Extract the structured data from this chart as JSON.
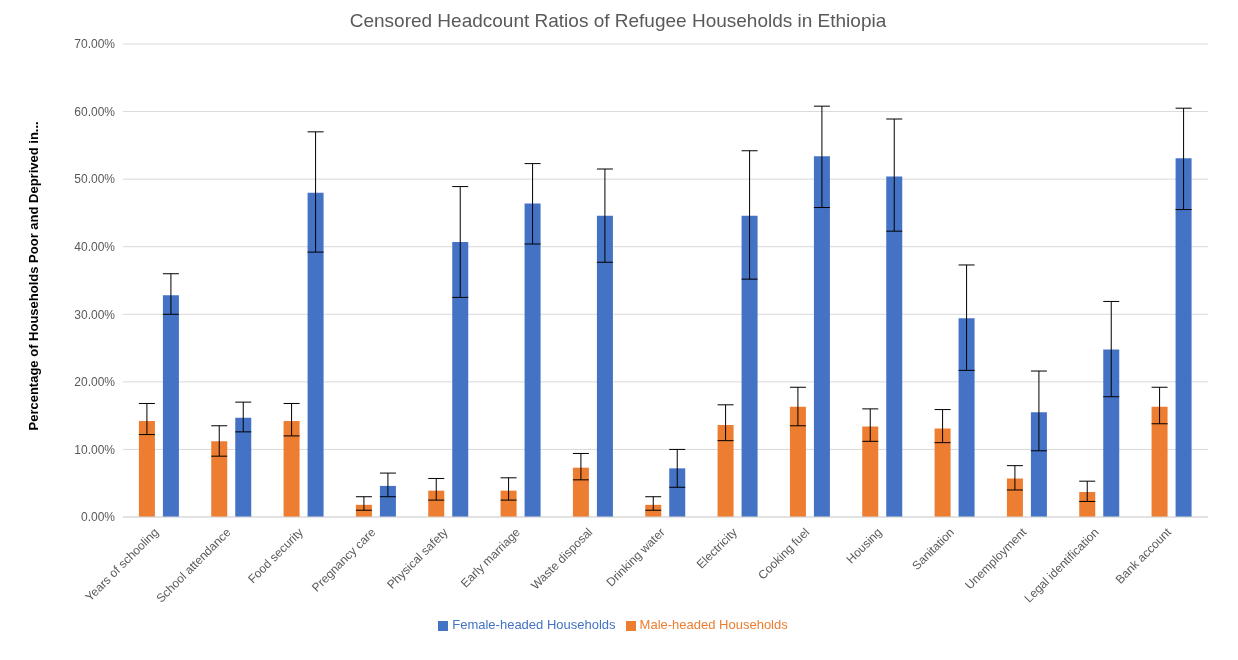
{
  "chart_data": {
    "type": "bar",
    "title": "Censored Headcount Ratios of Refugee Households in Ethiopia",
    "ylabel": "Percentage of Households Poor and Deprived in...",
    "categories": [
      "Years of schooling",
      "School attendance",
      "Food security",
      "Pregnancy care",
      "Physical safety",
      "Early marriage",
      "Waste disposal",
      "Drinking water",
      "Electricity",
      "Cooking fuel",
      "Housing",
      "Sanitation",
      "Unemployment",
      "Legal identification",
      "Bank account"
    ],
    "series": [
      {
        "name": "Male-headed Households",
        "color": "#ed7d31",
        "values": [
          14.2,
          11.2,
          14.2,
          1.8,
          3.9,
          3.9,
          7.3,
          1.8,
          13.6,
          16.3,
          13.4,
          13.1,
          5.7,
          3.7,
          16.3
        ],
        "errors": [
          [
            12.2,
            16.8
          ],
          [
            9,
            13.5
          ],
          [
            12,
            16.8
          ],
          [
            1,
            3
          ],
          [
            2.5,
            5.7
          ],
          [
            2.5,
            5.8
          ],
          [
            5.5,
            9.4
          ],
          [
            1,
            3
          ],
          [
            11.3,
            16.6
          ],
          [
            13.5,
            19.2
          ],
          [
            11.2,
            16
          ],
          [
            11,
            15.9
          ],
          [
            4,
            7.6
          ],
          [
            2.3,
            5.3
          ],
          [
            13.8,
            19.2
          ]
        ]
      },
      {
        "name": "Female-headed Households",
        "color": "#4472c4",
        "values": [
          32.8,
          14.7,
          48,
          4.6,
          40.7,
          46.4,
          44.6,
          7.2,
          44.6,
          53.4,
          50.4,
          29.4,
          15.5,
          24.8,
          53.1
        ],
        "errors": [
          [
            30,
            36
          ],
          [
            12.6,
            17
          ],
          [
            39.2,
            57
          ],
          [
            3,
            6.5
          ],
          [
            32.5,
            48.9
          ],
          [
            40.4,
            52.3
          ],
          [
            37.7,
            51.5
          ],
          [
            4.4,
            10
          ],
          [
            35.2,
            54.2
          ],
          [
            45.8,
            60.8
          ],
          [
            42.3,
            58.9
          ],
          [
            21.7,
            37.3
          ],
          [
            9.8,
            21.6
          ],
          [
            17.8,
            31.9
          ],
          [
            45.5,
            60.5
          ]
        ]
      }
    ],
    "ylim": [
      0,
      70
    ],
    "yticks": [
      {
        "value": 0,
        "label": "0.00%"
      },
      {
        "value": 10,
        "label": "10.00%"
      },
      {
        "value": 20,
        "label": "20.00%"
      },
      {
        "value": 30,
        "label": "30.00%"
      },
      {
        "value": 40,
        "label": "40.00%"
      },
      {
        "value": 50,
        "label": "50.00%"
      },
      {
        "value": 60,
        "label": "60.00%"
      },
      {
        "value": 70,
        "label": "70.00%"
      }
    ],
    "grid": "y",
    "legend": "bottom"
  }
}
